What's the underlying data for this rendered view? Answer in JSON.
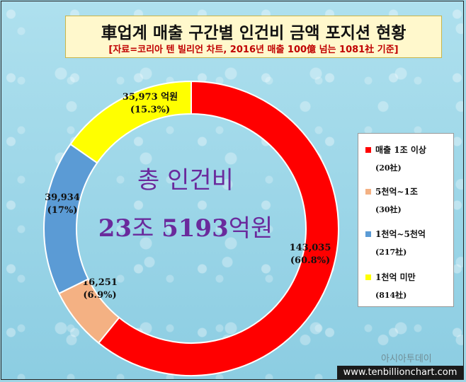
{
  "header": {
    "title_prefix": "車",
    "title_main": "업계 매출 구간별 인건비 금액 포지션 현황",
    "subtitle": "[자료=코리아 텐 빌리언 차트, 2016년 매출 100億 넘는 1081社 기준]"
  },
  "chart_data": {
    "type": "pie",
    "variant": "donut",
    "title": "車업계 매출 구간별 인건비 금액 포지션 현황",
    "unit": "억원",
    "slices": [
      {
        "name": "매출 1조 이상",
        "count": "(20社)",
        "value": 143035,
        "value_label": "143,035",
        "pct_label": "(60.8%)",
        "color": "#ff0000"
      },
      {
        "name": "5천억~1조",
        "count": "(30社)",
        "value": 16251,
        "value_label": "16,251",
        "pct_label": "(6.9%)",
        "color": "#f4b183"
      },
      {
        "name": "1천억~5천억",
        "count": "(217社)",
        "value": 39934,
        "value_label": "39,934",
        "pct_label": "(17%)",
        "color": "#5b9bd5"
      },
      {
        "name": "1천억 미만",
        "count": "(814社)",
        "value": 35973,
        "value_label": "35,973 억원",
        "pct_label": "(15.3%)",
        "color": "#ffff00"
      }
    ],
    "center_label": "총 인건비",
    "center_value_num1": "23",
    "center_value_word1": "조 ",
    "center_value_num2": "5193",
    "center_value_word2": "억원"
  },
  "watermark": "아시아투데이",
  "footer": "www.tenbillionchart.com"
}
